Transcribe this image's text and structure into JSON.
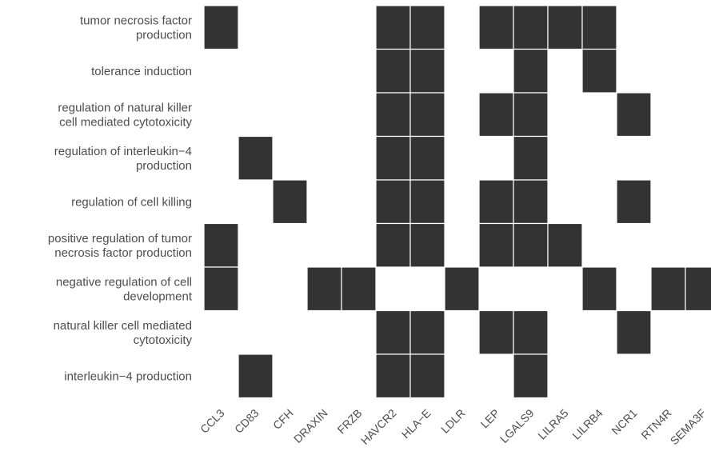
{
  "chart_data": {
    "type": "heatmap",
    "title": "",
    "xlabel": "",
    "ylabel": "",
    "legend": "none",
    "grid": false,
    "cell_color": "#333333",
    "separator_color": "#ffffff",
    "label_color": "#4d4d4d",
    "genes": [
      "CCL3",
      "CD83",
      "CFH",
      "DRAXIN",
      "FRZB",
      "HAVCR2",
      "HLA−E",
      "LDLR",
      "LEP",
      "LGALS9",
      "LILRA5",
      "LILRB4",
      "NCR1",
      "RTN4R",
      "SEMA3F"
    ],
    "terms": [
      {
        "lines": [
          "tumor necrosis factor",
          "production"
        ],
        "genes": [
          "CCL3",
          "HAVCR2",
          "HLA−E",
          "LEP",
          "LGALS9",
          "LILRA5",
          "LILRB4"
        ]
      },
      {
        "lines": [
          "tolerance induction"
        ],
        "genes": [
          "HAVCR2",
          "HLA−E",
          "LGALS9",
          "LILRB4"
        ]
      },
      {
        "lines": [
          "regulation of natural killer",
          "cell mediated cytotoxicity"
        ],
        "genes": [
          "HAVCR2",
          "HLA−E",
          "LEP",
          "LGALS9",
          "NCR1"
        ]
      },
      {
        "lines": [
          "regulation of interleukin−4",
          "production"
        ],
        "genes": [
          "CD83",
          "HAVCR2",
          "HLA−E",
          "LGALS9"
        ]
      },
      {
        "lines": [
          "regulation of cell killing"
        ],
        "genes": [
          "CFH",
          "HAVCR2",
          "HLA−E",
          "LEP",
          "LGALS9",
          "NCR1"
        ]
      },
      {
        "lines": [
          "positive regulation of tumor",
          "necrosis factor production"
        ],
        "genes": [
          "CCL3",
          "HAVCR2",
          "HLA−E",
          "LEP",
          "LGALS9",
          "LILRA5"
        ]
      },
      {
        "lines": [
          "negative regulation of cell",
          "development"
        ],
        "genes": [
          "CCL3",
          "DRAXIN",
          "FRZB",
          "LDLR",
          "LILRB4",
          "RTN4R",
          "SEMA3F"
        ]
      },
      {
        "lines": [
          "natural killer cell mediated",
          "cytotoxicity"
        ],
        "genes": [
          "HAVCR2",
          "HLA−E",
          "LEP",
          "LGALS9",
          "NCR1"
        ]
      },
      {
        "lines": [
          "interleukin−4 production"
        ],
        "genes": [
          "CD83",
          "HAVCR2",
          "HLA−E",
          "LGALS9"
        ]
      }
    ]
  }
}
